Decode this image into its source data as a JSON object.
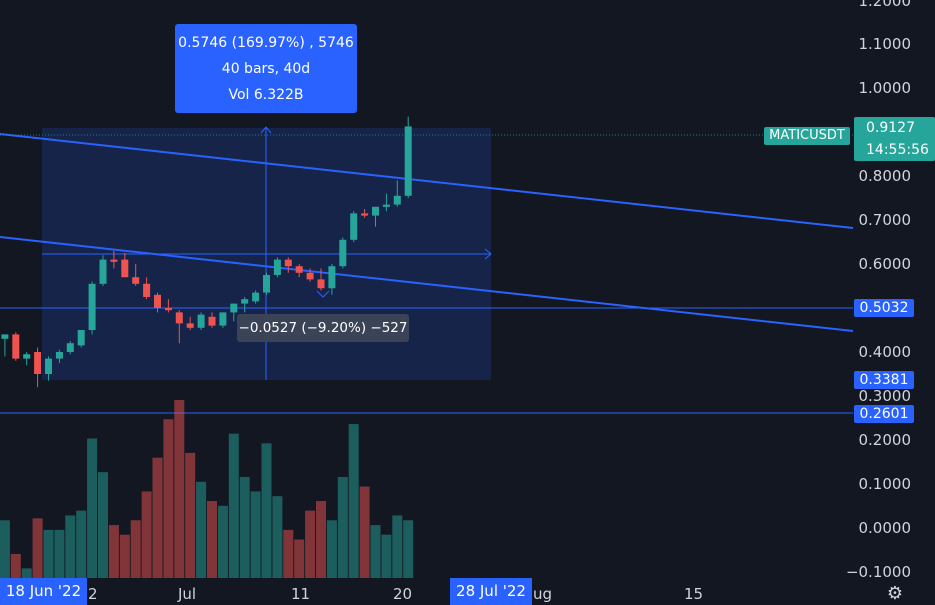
{
  "symbol": "MATICUSDT",
  "last_price": "0.9127",
  "countdown": "14:55:56",
  "price_axis": [
    "1.2000",
    "1.1000",
    "1.0000",
    "0.8000",
    "0.7000",
    "0.6000",
    "0.4000",
    "0.3000",
    "0.2000",
    "0.1000",
    "0.0000",
    "−0.1000"
  ],
  "price_labels": [
    {
      "value": "0.5032",
      "color": "#2962ff"
    },
    {
      "value": "0.3381",
      "color": "#2962ff"
    },
    {
      "value": "0.2601",
      "color": "#2962ff"
    }
  ],
  "time_axis": [
    "2",
    "Jul",
    "11",
    "20",
    "ug",
    "15"
  ],
  "time_selection": {
    "start": "18 Jun '22",
    "end": "28 Jul '22"
  },
  "measure": {
    "line1": "0.5746 (169.97%) , 5746",
    "line2": "40 bars, 40d",
    "line3": "Vol 6.322B"
  },
  "drawdown": "−0.0527 (−9.20%) −527",
  "colors": {
    "up": "#26a69a",
    "down": "#ef5350",
    "accent": "#2962ff",
    "background": "#131722"
  },
  "icons": {
    "settings": "gear-icon"
  },
  "chart_data": {
    "type": "candlestick",
    "candles": [
      {
        "o": 0.41,
        "h": 0.43,
        "l": 0.39,
        "c": 0.425,
        "v": 80
      },
      {
        "o": 0.43,
        "h": 0.44,
        "l": 0.39,
        "c": 0.44,
        "v": 60
      },
      {
        "o": 0.44,
        "h": 0.445,
        "l": 0.38,
        "c": 0.385,
        "v": 25
      },
      {
        "o": 0.385,
        "h": 0.4,
        "l": 0.37,
        "c": 0.395,
        "v": 10
      },
      {
        "o": 0.4,
        "h": 0.41,
        "l": 0.32,
        "c": 0.35,
        "v": 62
      },
      {
        "o": 0.35,
        "h": 0.39,
        "l": 0.335,
        "c": 0.385,
        "v": 50
      },
      {
        "o": 0.385,
        "h": 0.405,
        "l": 0.375,
        "c": 0.4,
        "v": 50
      },
      {
        "o": 0.4,
        "h": 0.425,
        "l": 0.395,
        "c": 0.42,
        "v": 65
      },
      {
        "o": 0.415,
        "h": 0.45,
        "l": 0.41,
        "c": 0.45,
        "v": 70
      },
      {
        "o": 0.45,
        "h": 0.56,
        "l": 0.44,
        "c": 0.555,
        "v": 145
      },
      {
        "o": 0.555,
        "h": 0.62,
        "l": 0.55,
        "c": 0.61,
        "v": 110
      },
      {
        "o": 0.61,
        "h": 0.63,
        "l": 0.59,
        "c": 0.605,
        "v": 55
      },
      {
        "o": 0.61,
        "h": 0.625,
        "l": 0.57,
        "c": 0.57,
        "v": 45
      },
      {
        "o": 0.57,
        "h": 0.6,
        "l": 0.55,
        "c": 0.555,
        "v": 60
      },
      {
        "o": 0.555,
        "h": 0.57,
        "l": 0.52,
        "c": 0.525,
        "v": 90
      },
      {
        "o": 0.53,
        "h": 0.535,
        "l": 0.49,
        "c": 0.5,
        "v": 125
      },
      {
        "o": 0.5,
        "h": 0.52,
        "l": 0.49,
        "c": 0.495,
        "v": 165
      },
      {
        "o": 0.49,
        "h": 0.495,
        "l": 0.42,
        "c": 0.465,
        "v": 185
      },
      {
        "o": 0.465,
        "h": 0.48,
        "l": 0.45,
        "c": 0.455,
        "v": 130
      },
      {
        "o": 0.455,
        "h": 0.49,
        "l": 0.45,
        "c": 0.485,
        "v": 100
      },
      {
        "o": 0.48,
        "h": 0.49,
        "l": 0.455,
        "c": 0.46,
        "v": 80
      },
      {
        "o": 0.46,
        "h": 0.49,
        "l": 0.455,
        "c": 0.49,
        "v": 75
      },
      {
        "o": 0.49,
        "h": 0.51,
        "l": 0.47,
        "c": 0.51,
        "v": 150
      },
      {
        "o": 0.51,
        "h": 0.525,
        "l": 0.49,
        "c": 0.52,
        "v": 105
      },
      {
        "o": 0.515,
        "h": 0.54,
        "l": 0.51,
        "c": 0.535,
        "v": 90
      },
      {
        "o": 0.535,
        "h": 0.58,
        "l": 0.53,
        "c": 0.575,
        "v": 140
      },
      {
        "o": 0.575,
        "h": 0.615,
        "l": 0.57,
        "c": 0.61,
        "v": 85
      },
      {
        "o": 0.61,
        "h": 0.615,
        "l": 0.58,
        "c": 0.595,
        "v": 50
      },
      {
        "o": 0.595,
        "h": 0.6,
        "l": 0.57,
        "c": 0.58,
        "v": 40
      },
      {
        "o": 0.58,
        "h": 0.59,
        "l": 0.56,
        "c": 0.565,
        "v": 70
      },
      {
        "o": 0.565,
        "h": 0.59,
        "l": 0.54,
        "c": 0.545,
        "v": 80
      },
      {
        "o": 0.545,
        "h": 0.6,
        "l": 0.53,
        "c": 0.595,
        "v": 60
      },
      {
        "o": 0.595,
        "h": 0.66,
        "l": 0.59,
        "c": 0.655,
        "v": 105
      },
      {
        "o": 0.655,
        "h": 0.72,
        "l": 0.65,
        "c": 0.715,
        "v": 160
      },
      {
        "o": 0.715,
        "h": 0.725,
        "l": 0.705,
        "c": 0.71,
        "v": 95
      },
      {
        "o": 0.71,
        "h": 0.73,
        "l": 0.685,
        "c": 0.73,
        "v": 55
      },
      {
        "o": 0.73,
        "h": 0.76,
        "l": 0.72,
        "c": 0.735,
        "v": 45
      },
      {
        "o": 0.735,
        "h": 0.79,
        "l": 0.73,
        "c": 0.755,
        "v": 65
      },
      {
        "o": 0.755,
        "h": 0.935,
        "l": 0.75,
        "c": 0.9127,
        "v": 60
      }
    ],
    "y_range": [
      -0.1,
      1.2
    ],
    "horizontal_levels": [
      0.5032,
      0.2601
    ],
    "measure_range": {
      "from": 0.3381,
      "to": 0.9127
    }
  }
}
